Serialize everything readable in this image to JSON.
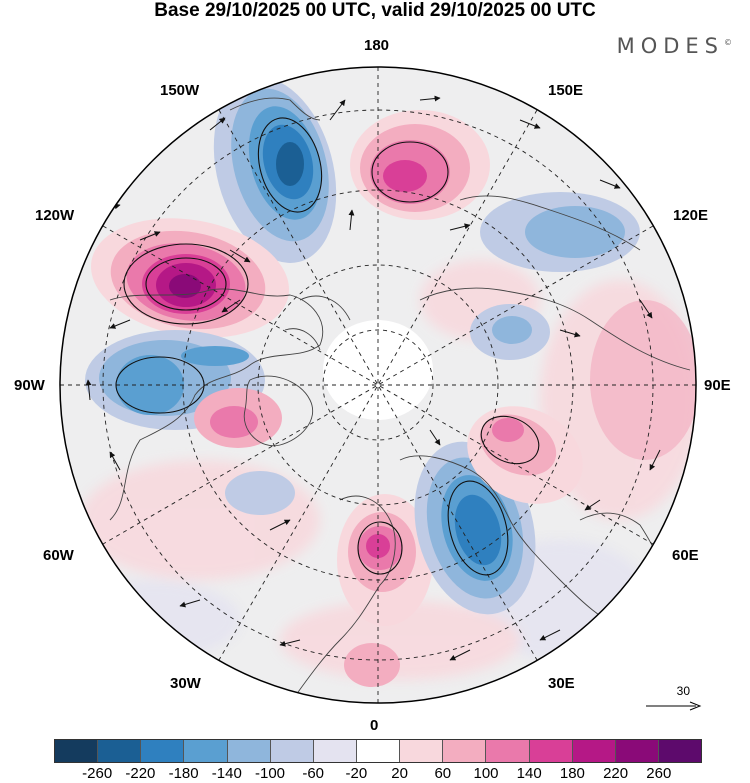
{
  "header": {
    "title": "Base 29/10/2025 00 UTC, valid 29/10/2025 00 UTC",
    "brand": "MODES",
    "brand_mark": "©"
  },
  "map": {
    "projection": "north-polar-stereographic",
    "longitude_labels": {
      "top": "180",
      "bottom": "0",
      "left": "90W",
      "right": "90E",
      "upper_left_1": "150W",
      "upper_left_2": "120W",
      "upper_right_1": "150E",
      "upper_right_2": "120E",
      "lower_left_1": "60W",
      "lower_left_2": "30W",
      "lower_right_1": "60E",
      "lower_right_2": "30E"
    },
    "anomaly_centers": [
      {
        "name": "low-alaska-north-pacific",
        "sign": "negative",
        "level": -220
      },
      {
        "name": "high-bering-sea",
        "sign": "positive",
        "level": 180
      },
      {
        "name": "high-western-canada",
        "sign": "positive",
        "level": 260
      },
      {
        "name": "low-hudson-bay",
        "sign": "negative",
        "level": -140
      },
      {
        "name": "high-greenland-sea",
        "sign": "positive",
        "level": 140
      },
      {
        "name": "high-western-europe",
        "sign": "positive",
        "level": 180
      },
      {
        "name": "low-scandinavia",
        "sign": "negative",
        "level": -220
      },
      {
        "name": "high-western-siberia",
        "sign": "positive",
        "level": 140
      },
      {
        "name": "low-east-siberia",
        "sign": "negative",
        "level": -140
      },
      {
        "name": "high-central-asia",
        "sign": "positive",
        "level": 100
      }
    ]
  },
  "reference_vector": {
    "label": "30"
  },
  "colorbar": {
    "colors": [
      "#143b5e",
      "#1b5f94",
      "#2f80bf",
      "#5a9fd1",
      "#8fb6dc",
      "#bfcbe5",
      "#e4e3f0",
      "#ffffff",
      "#f8d8dd",
      "#f3adc0",
      "#ea79ab",
      "#d93f97",
      "#b51886",
      "#8a0a78",
      "#5d0a6c"
    ],
    "ticks": [
      "-260",
      "-220",
      "-180",
      "-140",
      "-100",
      "-60",
      "-20",
      "20",
      "60",
      "100",
      "140",
      "180",
      "220",
      "260"
    ]
  }
}
